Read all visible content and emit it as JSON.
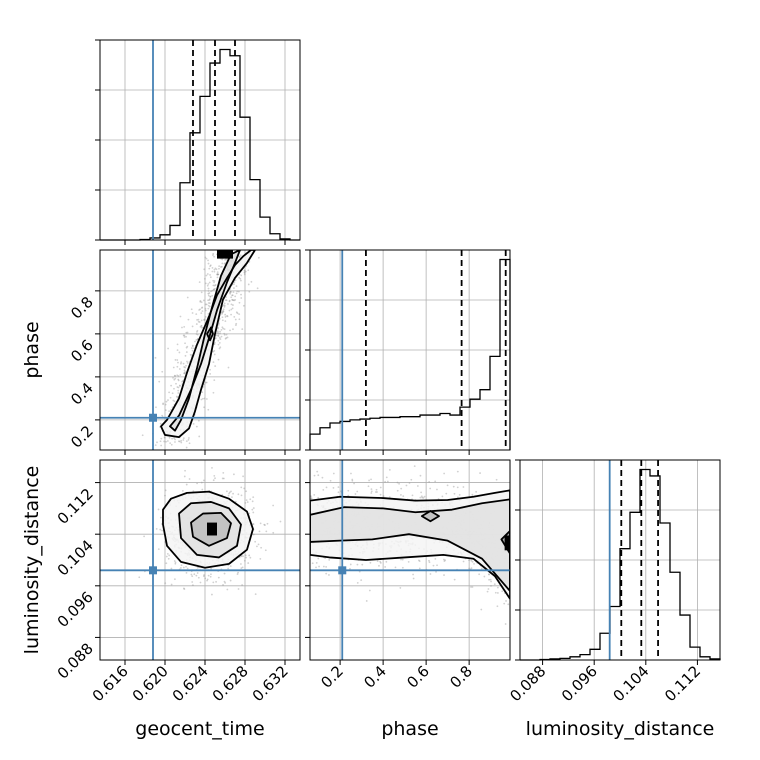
{
  "chart_data": {
    "type": "corner",
    "parameters": [
      "geocent_time",
      "phase",
      "luminosity_distance"
    ],
    "truth": {
      "geocent_time": 0.6188,
      "phase": 0.21,
      "luminosity_distance": 0.0984
    },
    "quantiles": {
      "geocent_time": [
        0.6228,
        0.625,
        0.627
      ],
      "phase": [
        0.32,
        0.765,
        0.97
      ],
      "luminosity_distance": [
        0.1002,
        0.1033,
        0.1059
      ]
    },
    "ranges": {
      "geocent_time": [
        0.6135,
        0.6335
      ],
      "phase": [
        0.06,
        0.99
      ],
      "luminosity_distance": [
        0.0845,
        0.1155
      ]
    },
    "ticks": {
      "geocent_time": [
        0.616,
        0.62,
        0.624,
        0.628,
        0.632
      ],
      "phase": [
        0.2,
        0.4,
        0.6,
        0.8
      ],
      "luminosity_distance": [
        0.088,
        0.096,
        0.104,
        0.112
      ]
    },
    "tick_labels": {
      "geocent_time": [
        "0.616",
        "0.620",
        "0.624",
        "0.628",
        "0.632"
      ],
      "phase": [
        "0.2",
        "0.4",
        "0.6",
        "0.8"
      ],
      "luminosity_distance": [
        "0.088",
        "0.096",
        "0.104",
        "0.112"
      ]
    },
    "histograms": {
      "geocent_time": {
        "bin_edges": [
          0.6135,
          0.6145,
          0.6155,
          0.6165,
          0.6175,
          0.6185,
          0.6195,
          0.6205,
          0.6215,
          0.6225,
          0.6235,
          0.6245,
          0.6255,
          0.6265,
          0.6275,
          0.6285,
          0.6295,
          0.6305,
          0.6315,
          0.6325,
          0.6335
        ],
        "counts": [
          0,
          0,
          0,
          0,
          0.5,
          2,
          5,
          14,
          55,
          103,
          138,
          170,
          183,
          177,
          118,
          58,
          22,
          6,
          1,
          0
        ]
      },
      "phase": {
        "bin_edges": [
          0.06,
          0.1065,
          0.153,
          0.1995,
          0.246,
          0.2925,
          0.339,
          0.3855,
          0.432,
          0.4785,
          0.525,
          0.5715,
          0.618,
          0.6645,
          0.711,
          0.7575,
          0.804,
          0.8505,
          0.897,
          0.9435,
          0.99
        ],
        "counts": [
          10,
          14,
          17,
          18,
          19,
          19.5,
          20,
          20.5,
          20.5,
          21,
          21,
          22,
          22,
          23,
          22,
          27,
          32,
          38,
          59,
          120
        ]
      },
      "luminosity_distance": {
        "bin_edges": [
          0.0845,
          0.08605,
          0.0876,
          0.08915,
          0.0907,
          0.09225,
          0.0938,
          0.09535,
          0.0969,
          0.09845,
          0.1,
          0.10155,
          0.1031,
          0.10465,
          0.1062,
          0.10775,
          0.1093,
          0.11085,
          0.1124,
          0.11395,
          0.1155
        ],
        "counts": [
          0,
          0,
          0.5,
          1,
          1.5,
          3,
          5,
          10,
          25,
          50,
          104,
          138,
          178,
          172,
          128,
          82,
          42,
          12,
          3,
          1
        ]
      }
    },
    "contours": {
      "geocent_time__phase": [
        {
          "x": [
            0.6196,
            0.6202,
            0.6214,
            0.6222,
            0.6232,
            0.6244,
            0.6252,
            0.6262,
            0.627,
            0.6278,
            0.6286,
            0.629,
            0.6282,
            0.627,
            0.6258,
            0.625,
            0.6244,
            0.6236,
            0.623,
            0.6224,
            0.6214,
            0.62,
            0.6196
          ],
          "y": [
            0.17,
            0.2,
            0.3,
            0.42,
            0.55,
            0.68,
            0.78,
            0.86,
            0.92,
            0.96,
            0.99,
            0.99,
            0.93,
            0.86,
            0.76,
            0.6,
            0.46,
            0.34,
            0.24,
            0.16,
            0.12,
            0.13,
            0.17
          ]
        },
        {
          "x": [
            0.6205,
            0.6214,
            0.6226,
            0.6236,
            0.6244,
            0.6252,
            0.6262,
            0.627,
            0.6275,
            0.6266,
            0.6256,
            0.6248,
            0.624,
            0.6232,
            0.6224,
            0.6216,
            0.621,
            0.6205
          ],
          "y": [
            0.17,
            0.22,
            0.34,
            0.46,
            0.58,
            0.71,
            0.84,
            0.93,
            0.99,
            0.97,
            0.87,
            0.74,
            0.6,
            0.44,
            0.3,
            0.2,
            0.15,
            0.17
          ]
        },
        {
          "x": [
            0.6242,
            0.6246,
            0.6248,
            0.6245,
            0.6242
          ],
          "y": [
            0.6,
            0.63,
            0.6,
            0.57,
            0.6
          ]
        }
      ],
      "geocent_time__luminosity_distance": [
        {
          "x": [
            0.6198,
            0.6206,
            0.6222,
            0.6244,
            0.6264,
            0.6282,
            0.6288,
            0.6282,
            0.6264,
            0.624,
            0.6216,
            0.6202,
            0.6198
          ],
          "y": [
            0.1078,
            0.1095,
            0.1104,
            0.1106,
            0.1095,
            0.1075,
            0.1048,
            0.1016,
            0.0994,
            0.0988,
            0.0997,
            0.1022,
            0.1055
          ]
        },
        {
          "x": [
            0.6214,
            0.6226,
            0.6246,
            0.6264,
            0.6276,
            0.6272,
            0.6254,
            0.6232,
            0.6216,
            0.6214
          ],
          "y": [
            0.1072,
            0.1088,
            0.109,
            0.108,
            0.1055,
            0.1022,
            0.1004,
            0.1008,
            0.1034,
            0.1072
          ]
        },
        {
          "x": [
            0.6226,
            0.6238,
            0.6256,
            0.6266,
            0.6262,
            0.6244,
            0.6228,
            0.6226
          ],
          "y": [
            0.1058,
            0.1072,
            0.1073,
            0.1057,
            0.1034,
            0.1022,
            0.1036,
            0.1058
          ]
        }
      ],
      "phase__luminosity_distance": [
        {
          "x": [
            0.06,
            0.2,
            0.4,
            0.55,
            0.7,
            0.82,
            0.92,
            0.99,
            0.99,
            0.92,
            0.82,
            0.68,
            0.5,
            0.32,
            0.15,
            0.06
          ],
          "y": [
            0.1092,
            0.1098,
            0.1096,
            0.1092,
            0.1093,
            0.1098,
            0.1104,
            0.1108,
            0.094,
            0.0975,
            0.1002,
            0.1008,
            0.1004,
            0.1,
            0.1004,
            0.1008
          ]
        },
        {
          "x": [
            0.06,
            0.22,
            0.4,
            0.55,
            0.72,
            0.86,
            0.99,
            0.99,
            0.86,
            0.7,
            0.52,
            0.35,
            0.2,
            0.06
          ],
          "y": [
            0.107,
            0.1082,
            0.108,
            0.1074,
            0.1078,
            0.1088,
            0.1094,
            0.0952,
            0.1002,
            0.103,
            0.104,
            0.1032,
            0.103,
            0.1028
          ]
        },
        {
          "x": [
            0.58,
            0.62,
            0.66,
            0.62,
            0.58
          ],
          "y": [
            0.1068,
            0.1076,
            0.1068,
            0.106,
            0.1068
          ]
        },
        {
          "x": [
            0.95,
            0.99,
            0.99,
            0.95
          ],
          "y": [
            0.1032,
            0.1045,
            0.101,
            0.1032
          ]
        }
      ]
    },
    "density_cores": {
      "geocent_time__phase": {
        "x": [
          0.6252,
          0.6268
        ],
        "y": [
          0.95,
          0.99
        ]
      },
      "geocent_time__luminosity_distance": {
        "x": [
          0.6242,
          0.6252
        ],
        "y": [
          0.1038,
          0.1058
        ]
      },
      "phase__luminosity_distance": {
        "x": [
          0.965,
          0.99
        ],
        "y": [
          0.1015,
          0.1038
        ]
      }
    },
    "colors": {
      "truth": "#4682b4",
      "line": "#000000",
      "grid": "#b0b0b0",
      "scatter": "#9a9a9a"
    },
    "grid": true
  }
}
